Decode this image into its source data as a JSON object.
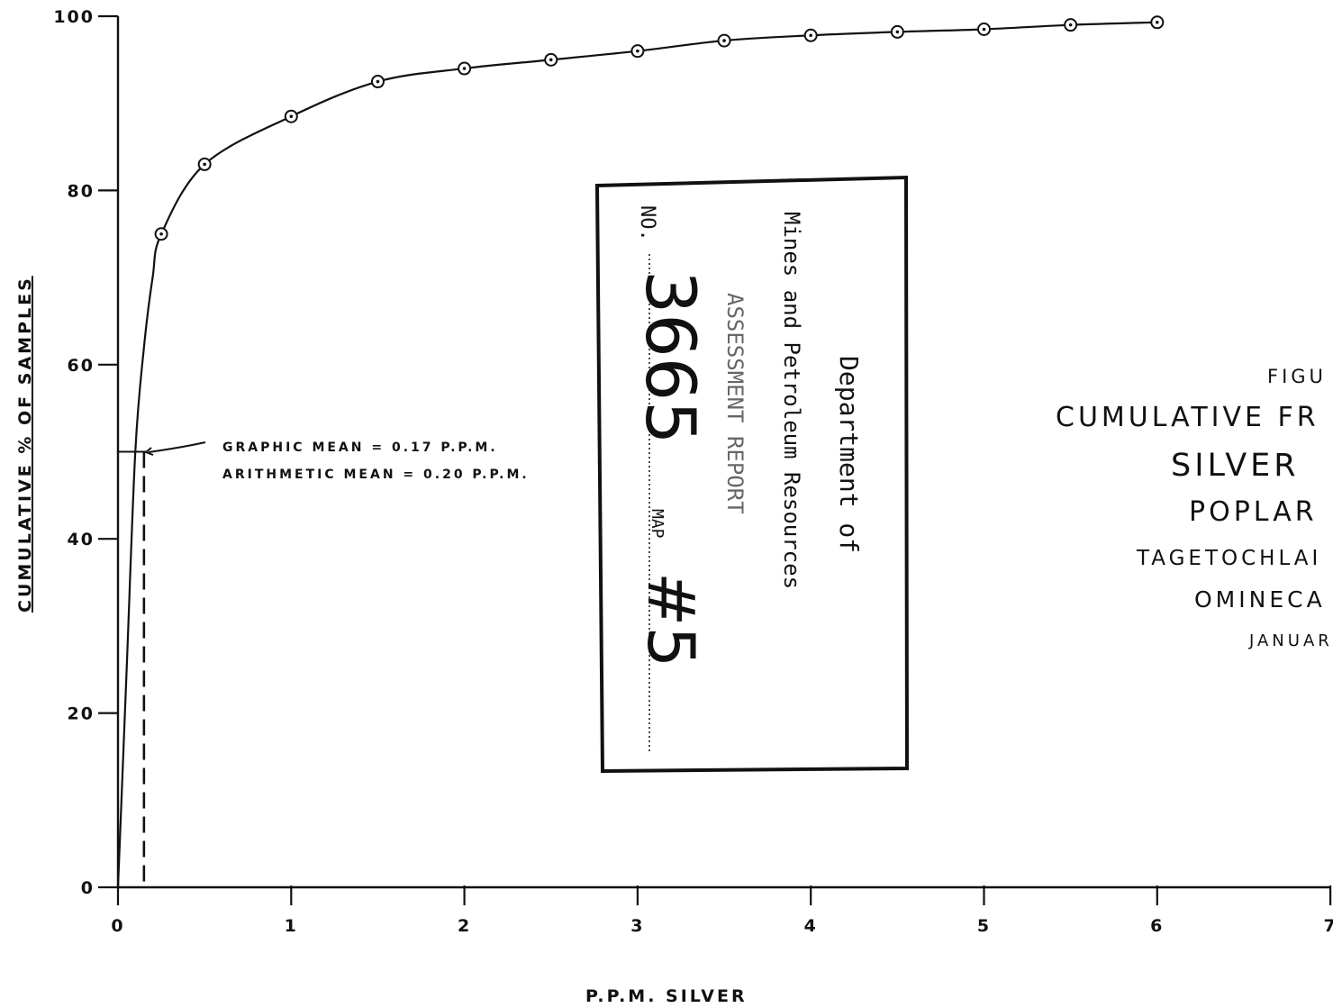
{
  "chart_data": {
    "type": "line",
    "xlabel": "P.P.M.  SILVER",
    "ylabel": "CUMULATIVE % OF SAMPLES",
    "xlim": [
      0,
      7
    ],
    "ylim": [
      0,
      100
    ],
    "x_ticks": [
      "0",
      "1",
      "2",
      "3",
      "4",
      "5",
      "6",
      "7"
    ],
    "y_ticks": [
      "0",
      "20",
      "40",
      "60",
      "80",
      "100"
    ],
    "grid": false,
    "series": [
      {
        "x": [
          0.25,
          0.5,
          1.0,
          1.5,
          2.0,
          2.5,
          3.0,
          3.5,
          4.0,
          4.5,
          5.0,
          5.5,
          6.0
        ],
        "y": [
          75,
          83,
          88.5,
          92.5,
          94,
          95,
          96,
          97.2,
          97.8,
          98.2,
          98.5,
          99,
          99.3
        ]
      }
    ],
    "curve_low_end": {
      "x": [
        0,
        0.05,
        0.1,
        0.15,
        0.2,
        0.25
      ],
      "y": [
        0,
        25,
        50,
        62,
        70,
        75
      ]
    },
    "mean_marker": {
      "x": 0.15,
      "y": 50
    },
    "annotations": [
      "GRAPHIC  MEAN = 0.17  P.P.M.",
      "ARITHMETIC  MEAN = 0.20  P.P.M."
    ],
    "title_lines": [
      "FIGU",
      "CUMULATIVE  FR",
      "SILVER",
      "POPLAR",
      "TAGETOCHLAI",
      "OMINECA",
      "JANUAR"
    ]
  },
  "stamp": {
    "line1": "Department of",
    "line2": "Mines and Petroleum Resources",
    "line3": "ASSESSMENT  REPORT",
    "no_label": "NO.",
    "report_number": "3665",
    "map_label": "MAP",
    "map_number": "#5"
  }
}
